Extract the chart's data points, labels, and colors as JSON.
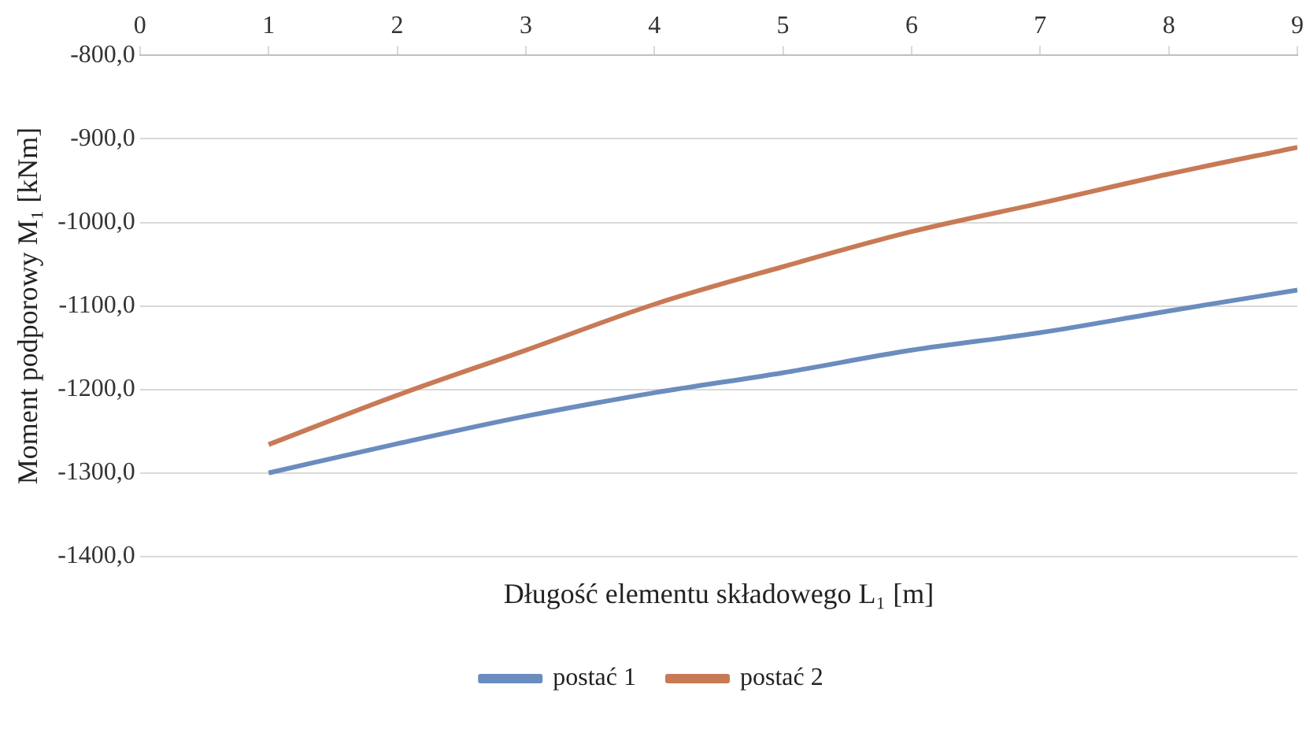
{
  "chart_data": {
    "type": "line",
    "xlabel": "Długość elementu składowego L₁ [m]",
    "ylabel": "Moment podporowy M₁ [kNm]",
    "x": [
      1,
      2,
      3,
      4,
      5,
      6,
      7,
      8,
      9
    ],
    "series": [
      {
        "name": "postać 1",
        "color": "#6b8cbe",
        "values": [
          -1300,
          -1265,
          -1232,
          -1204,
          -1180,
          -1153,
          -1132,
          -1106,
          -1081
        ]
      },
      {
        "name": "postać 2",
        "color": "#c87a56",
        "values": [
          -1266,
          -1207,
          -1153,
          -1098,
          -1053,
          -1011,
          -977,
          -942,
          -910
        ]
      }
    ],
    "xlim": [
      0,
      9
    ],
    "xticks": [
      0,
      1,
      2,
      3,
      4,
      5,
      6,
      7,
      8,
      9
    ],
    "ylim": [
      -1400,
      -800
    ],
    "yticks": [
      {
        "value": -800,
        "label": "-800,0"
      },
      {
        "value": -900,
        "label": "-900,0"
      },
      {
        "value": -1000,
        "label": "-1000,0"
      },
      {
        "value": -1100,
        "label": "-1100,0"
      },
      {
        "value": -1200,
        "label": "-1200,0"
      },
      {
        "value": -1300,
        "label": "-1300,0"
      },
      {
        "value": -1400,
        "label": "-1400,0"
      }
    ],
    "grid": "y",
    "legend": "bottom",
    "marker": "none",
    "line_style": "solid"
  }
}
